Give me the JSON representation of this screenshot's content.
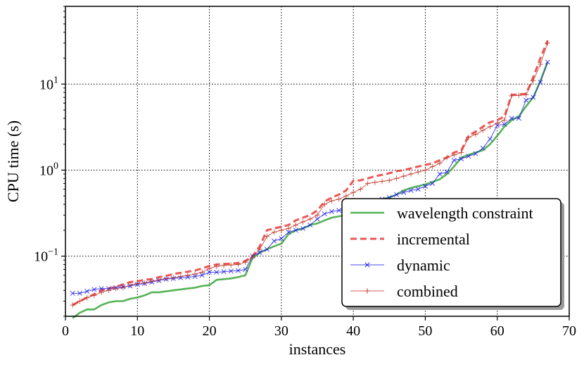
{
  "chart_data": {
    "type": "line",
    "xlabel": "instances",
    "ylabel": "CPU time (s)",
    "xlim": [
      0,
      70
    ],
    "ylim": [
      0.02,
      80
    ],
    "yscale": "log",
    "grid": true,
    "legend_position": "bottom-right",
    "x_ticks": [
      0,
      10,
      20,
      30,
      40,
      50,
      60,
      70
    ],
    "y_ticks": [
      {
        "value": 0.1,
        "base": "10",
        "exp": "−1"
      },
      {
        "value": 1,
        "base": "10",
        "exp": "0"
      },
      {
        "value": 10,
        "base": "10",
        "exp": "1"
      }
    ],
    "series": [
      {
        "name": "wavelength constraint",
        "color": "#2ca02c",
        "style": "solid",
        "marker": "",
        "x": [
          1,
          2,
          3,
          4,
          5,
          6,
          7,
          8,
          9,
          10,
          11,
          12,
          13,
          14,
          15,
          16,
          17,
          18,
          19,
          20,
          21,
          22,
          23,
          24,
          25,
          26,
          27,
          28,
          29,
          30,
          31,
          32,
          33,
          34,
          35,
          36,
          37,
          38,
          39,
          40,
          41,
          42,
          43,
          44,
          45,
          46,
          47,
          48,
          49,
          50,
          51,
          52,
          53,
          54,
          55,
          56,
          57,
          58,
          59,
          60,
          61,
          62,
          63,
          64,
          65,
          66,
          67
        ],
        "values": [
          0.019,
          0.022,
          0.024,
          0.024,
          0.027,
          0.029,
          0.03,
          0.03,
          0.032,
          0.033,
          0.035,
          0.038,
          0.038,
          0.039,
          0.04,
          0.041,
          0.042,
          0.043,
          0.045,
          0.046,
          0.053,
          0.054,
          0.055,
          0.057,
          0.06,
          0.095,
          0.11,
          0.12,
          0.13,
          0.14,
          0.18,
          0.2,
          0.21,
          0.23,
          0.24,
          0.26,
          0.28,
          0.29,
          0.3,
          0.32,
          0.36,
          0.4,
          0.43,
          0.46,
          0.48,
          0.52,
          0.58,
          0.62,
          0.65,
          0.68,
          0.73,
          0.78,
          0.9,
          1.1,
          1.4,
          1.5,
          1.6,
          1.7,
          2.0,
          2.5,
          3.2,
          3.8,
          4.2,
          5.5,
          7.0,
          11.0,
          18.0
        ]
      },
      {
        "name": "incremental",
        "color": "#e83a3a",
        "style": "dashed",
        "marker": "",
        "x": [
          1,
          2,
          3,
          4,
          5,
          6,
          7,
          8,
          9,
          10,
          11,
          12,
          13,
          14,
          15,
          16,
          17,
          18,
          19,
          20,
          21,
          22,
          23,
          24,
          25,
          26,
          27,
          28,
          29,
          30,
          31,
          32,
          33,
          34,
          35,
          36,
          37,
          38,
          39,
          40,
          41,
          42,
          43,
          44,
          45,
          46,
          47,
          48,
          49,
          50,
          51,
          52,
          53,
          54,
          55,
          56,
          57,
          58,
          59,
          60,
          61,
          62,
          63,
          64,
          65,
          66,
          67
        ],
        "values": [
          0.027,
          0.03,
          0.033,
          0.036,
          0.04,
          0.042,
          0.044,
          0.047,
          0.05,
          0.051,
          0.053,
          0.054,
          0.057,
          0.059,
          0.062,
          0.064,
          0.066,
          0.068,
          0.072,
          0.077,
          0.08,
          0.081,
          0.082,
          0.083,
          0.088,
          0.1,
          0.13,
          0.2,
          0.21,
          0.22,
          0.23,
          0.26,
          0.28,
          0.3,
          0.34,
          0.43,
          0.48,
          0.52,
          0.58,
          0.75,
          0.76,
          0.8,
          0.85,
          0.88,
          0.92,
          0.97,
          1.0,
          1.05,
          1.1,
          1.15,
          1.2,
          1.3,
          1.4,
          1.6,
          1.7,
          2.5,
          2.8,
          3.2,
          3.6,
          3.8,
          4.2,
          7.5,
          7.6,
          7.7,
          12.0,
          20.0,
          32.0
        ]
      },
      {
        "name": "dynamic",
        "color": "#1a1aee",
        "style": "solid",
        "marker": "x",
        "x": [
          1,
          2,
          3,
          4,
          5,
          6,
          7,
          8,
          9,
          10,
          11,
          12,
          13,
          14,
          15,
          16,
          17,
          18,
          19,
          20,
          21,
          22,
          23,
          24,
          25,
          26,
          27,
          28,
          29,
          30,
          31,
          32,
          33,
          34,
          35,
          36,
          37,
          38,
          39,
          40,
          41,
          42,
          43,
          44,
          45,
          46,
          47,
          48,
          49,
          50,
          51,
          52,
          53,
          54,
          55,
          56,
          57,
          58,
          59,
          60,
          61,
          62,
          63,
          64,
          65,
          66,
          67
        ],
        "values": [
          0.037,
          0.037,
          0.039,
          0.041,
          0.042,
          0.042,
          0.043,
          0.044,
          0.045,
          0.047,
          0.048,
          0.05,
          0.052,
          0.054,
          0.055,
          0.056,
          0.057,
          0.058,
          0.06,
          0.065,
          0.065,
          0.066,
          0.067,
          0.068,
          0.07,
          0.1,
          0.11,
          0.12,
          0.15,
          0.16,
          0.19,
          0.2,
          0.21,
          0.23,
          0.27,
          0.31,
          0.33,
          0.34,
          0.35,
          0.36,
          0.38,
          0.4,
          0.43,
          0.46,
          0.48,
          0.52,
          0.55,
          0.58,
          0.6,
          0.65,
          0.7,
          0.9,
          0.95,
          1.3,
          1.35,
          1.45,
          1.55,
          1.8,
          2.3,
          3.3,
          3.4,
          4.0,
          4.0,
          6.5,
          7.0,
          10.5,
          18.0
        ]
      },
      {
        "name": "combined",
        "color": "#c0392b",
        "style": "solid",
        "marker": "+",
        "x": [
          1,
          2,
          3,
          4,
          5,
          6,
          7,
          8,
          9,
          10,
          11,
          12,
          13,
          14,
          15,
          16,
          17,
          18,
          19,
          20,
          21,
          22,
          23,
          24,
          25,
          26,
          27,
          28,
          29,
          30,
          31,
          32,
          33,
          34,
          35,
          36,
          37,
          38,
          39,
          40,
          41,
          42,
          43,
          44,
          45,
          46,
          47,
          48,
          49,
          50,
          51,
          52,
          53,
          54,
          55,
          56,
          57,
          58,
          59,
          60,
          61,
          62,
          63,
          64,
          65,
          66,
          67
        ],
        "values": [
          0.027,
          0.03,
          0.033,
          0.035,
          0.038,
          0.04,
          0.042,
          0.043,
          0.046,
          0.048,
          0.049,
          0.051,
          0.053,
          0.055,
          0.056,
          0.058,
          0.06,
          0.062,
          0.065,
          0.072,
          0.076,
          0.078,
          0.079,
          0.08,
          0.085,
          0.097,
          0.12,
          0.17,
          0.19,
          0.2,
          0.21,
          0.23,
          0.25,
          0.27,
          0.3,
          0.4,
          0.44,
          0.46,
          0.5,
          0.55,
          0.6,
          0.7,
          0.72,
          0.74,
          0.76,
          0.8,
          0.85,
          0.9,
          0.95,
          1.0,
          1.1,
          1.2,
          1.4,
          1.5,
          1.6,
          2.4,
          2.6,
          2.9,
          3.2,
          3.5,
          3.8,
          7.3,
          7.4,
          7.5,
          11.0,
          17.0,
          30.0
        ]
      }
    ]
  }
}
